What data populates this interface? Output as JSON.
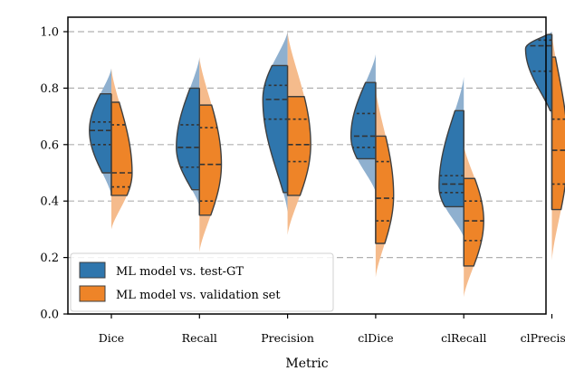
{
  "chart_data": {
    "type": "split-violin",
    "title": "",
    "xlabel": "Metric",
    "ylabel": "",
    "ylim": [
      0.0,
      1.0
    ],
    "yticks": [
      0.0,
      0.2,
      0.4,
      0.6,
      0.8,
      1.0
    ],
    "yticklabels": [
      "0.0",
      "0.2",
      "0.4",
      "0.6",
      "0.8",
      "1.0"
    ],
    "grid": "horizontal dashed",
    "legend_position": "lower-left",
    "categories": [
      "Dice",
      "Recall",
      "Precision",
      "clDice",
      "clRecall",
      "clPrecision"
    ],
    "series": [
      {
        "name": "ML model vs. test-GT",
        "side": "left",
        "color": "#2f76ad",
        "light_color": "#8fb0cf",
        "quartiles": [
          [
            0.6,
            0.65,
            0.68
          ],
          [
            0.52,
            0.59,
            0.67
          ],
          [
            0.69,
            0.76,
            0.81
          ],
          [
            0.59,
            0.63,
            0.71
          ],
          [
            0.43,
            0.46,
            0.49
          ],
          [
            0.86,
            0.95,
            0.97
          ]
        ],
        "distributions": [
          {
            "ymin": 0.42,
            "ymax": 0.87,
            "fill_lo": 0.5,
            "fill_hi": 0.78,
            "mode": 0.65,
            "width": 0.55
          },
          {
            "ymin": 0.38,
            "ymax": 0.91,
            "fill_lo": 0.44,
            "fill_hi": 0.8,
            "mode": 0.59,
            "width": 0.58
          },
          {
            "ymin": 0.36,
            "ymax": 1.0,
            "fill_lo": 0.43,
            "fill_hi": 0.88,
            "mode": 0.76,
            "width": 0.62
          },
          {
            "ymin": 0.43,
            "ymax": 0.92,
            "fill_lo": 0.55,
            "fill_hi": 0.82,
            "mode": 0.63,
            "width": 0.62
          },
          {
            "ymin": 0.27,
            "ymax": 0.84,
            "fill_lo": 0.38,
            "fill_hi": 0.72,
            "mode": 0.45,
            "width": 0.62
          },
          {
            "ymin": 0.7,
            "ymax": 1.0,
            "fill_lo": 0.72,
            "fill_hi": 0.99,
            "mode": 0.94,
            "width": 0.66
          }
        ]
      },
      {
        "name": "ML model vs. validation set",
        "side": "right",
        "color": "#ee8428",
        "light_color": "#f5bb8c",
        "quartiles": [
          [
            0.45,
            0.5,
            0.67
          ],
          [
            0.4,
            0.53,
            0.66
          ],
          [
            0.54,
            0.6,
            0.69
          ],
          [
            0.33,
            0.41,
            0.54
          ],
          [
            0.26,
            0.33,
            0.4
          ],
          [
            0.46,
            0.58,
            0.69
          ]
        ],
        "distributions": [
          {
            "ymin": 0.3,
            "ymax": 0.87,
            "fill_lo": 0.42,
            "fill_hi": 0.75,
            "mode": 0.5,
            "width": 0.52
          },
          {
            "ymin": 0.22,
            "ymax": 0.91,
            "fill_lo": 0.35,
            "fill_hi": 0.74,
            "mode": 0.53,
            "width": 0.55
          },
          {
            "ymin": 0.28,
            "ymax": 1.0,
            "fill_lo": 0.42,
            "fill_hi": 0.77,
            "mode": 0.6,
            "width": 0.58
          },
          {
            "ymin": 0.13,
            "ymax": 0.8,
            "fill_lo": 0.25,
            "fill_hi": 0.63,
            "mode": 0.42,
            "width": 0.45
          },
          {
            "ymin": 0.06,
            "ymax": 0.6,
            "fill_lo": 0.17,
            "fill_hi": 0.48,
            "mode": 0.33,
            "width": 0.5
          },
          {
            "ymin": 0.19,
            "ymax": 1.0,
            "fill_lo": 0.37,
            "fill_hi": 0.91,
            "mode": 0.58,
            "width": 0.4
          }
        ]
      }
    ]
  }
}
